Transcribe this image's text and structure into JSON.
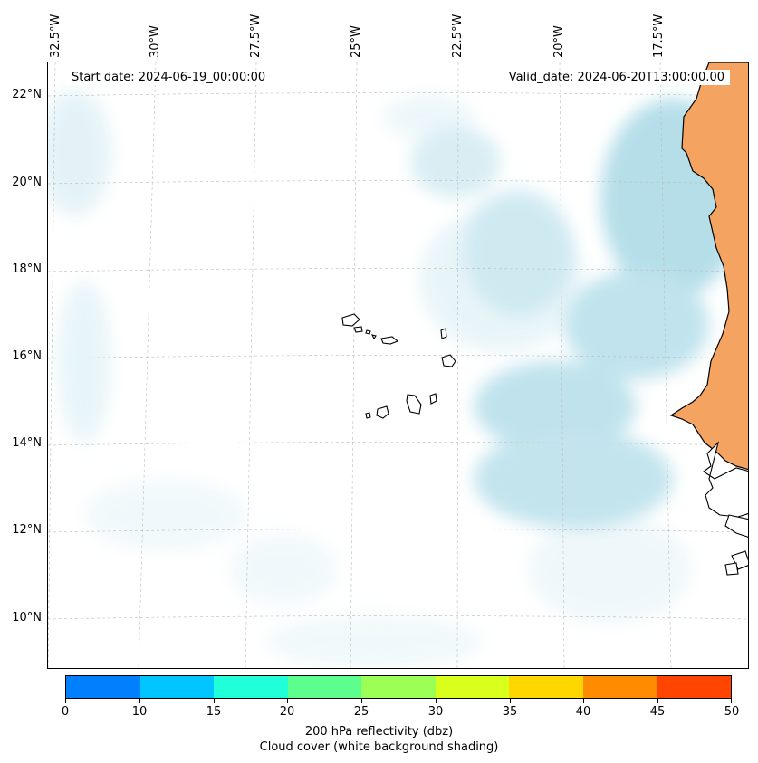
{
  "map": {
    "start_date": "Start date: 2024-06-19_00:00:00",
    "valid_date": "Valid_date: 2024-06-20T13:00:00.00",
    "lon_labels": [
      "32.5°W",
      "30°W",
      "27.5°W",
      "25°W",
      "22.5°W",
      "20°W",
      "17.5°W"
    ],
    "lat_labels": [
      "22°N",
      "20°N",
      "18°N",
      "16°N",
      "14°N",
      "12°N",
      "10°N"
    ],
    "extent": {
      "lon_min": -32.5,
      "lon_max": -15.3,
      "lat_min": 8.9,
      "lat_max": 22.8
    },
    "colors": {
      "land": "#f4a460",
      "cloud": "#a9d9e6",
      "coast": "#000000",
      "grid": "#bbbbbb"
    }
  },
  "colorbar": {
    "ticks": [
      "0",
      "10",
      "15",
      "20",
      "25",
      "30",
      "35",
      "40",
      "45",
      "50"
    ],
    "colors": [
      "#0080ff",
      "#00c5ff",
      "#1fffd8",
      "#5cff8e",
      "#9cff55",
      "#d9ff1c",
      "#ffd700",
      "#ff8c00",
      "#ff4500"
    ],
    "label": "200 hPa reflectivity (dbz)",
    "sublabel": "Cloud cover (white background shading)"
  }
}
